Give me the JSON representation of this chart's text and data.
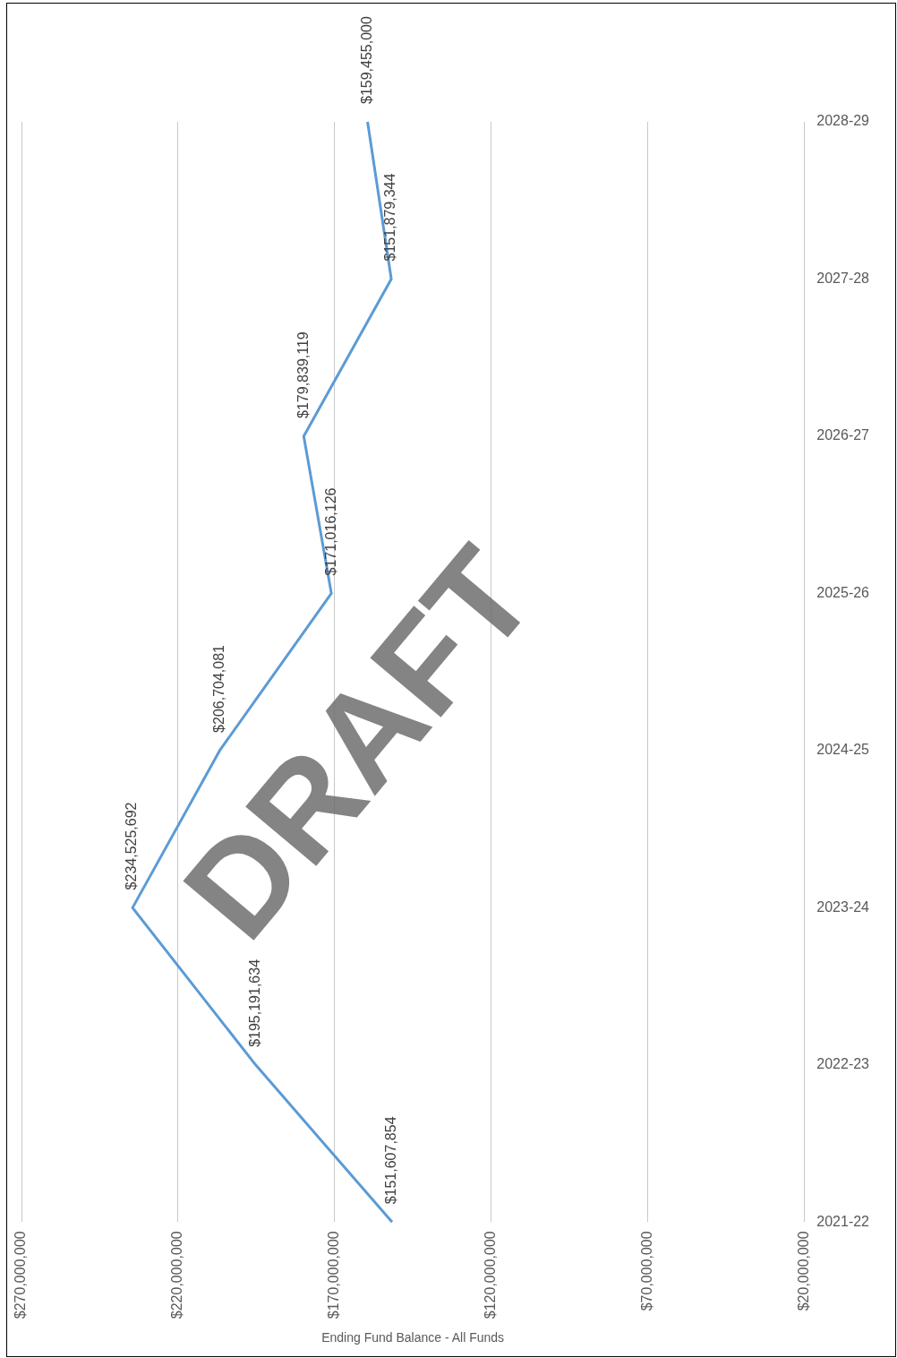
{
  "chart_data": {
    "type": "line",
    "orientation": "horizontal",
    "xlabel": "Ending Fund Balance - All Funds",
    "categories": [
      "2028-29",
      "2027-28",
      "2026-27",
      "2025-26",
      "2024-25",
      "2023-24",
      "2022-23",
      "2021-22"
    ],
    "series": [
      {
        "color": "#5b9bd5",
        "values": [
          159455000,
          151879344,
          179839119,
          171016126,
          206704081,
          234525692,
          195191634,
          151607854
        ],
        "value_labels": [
          "$159,455,000",
          "$151,879,344",
          "$179,839,119",
          "$171,016,126",
          "$206,704,081",
          "$234,525,692",
          "$195,191,634",
          "$151,607,854"
        ]
      }
    ],
    "xlim": [
      270000000,
      20000000
    ],
    "xticks": [
      {
        "value": 270000000,
        "label": "$270,000,000"
      },
      {
        "value": 220000000,
        "label": "$220,000,000"
      },
      {
        "value": 170000000,
        "label": "$170,000,000"
      },
      {
        "value": 120000000,
        "label": "$120,000,000"
      },
      {
        "value": 70000000,
        "label": "$70,000,000"
      },
      {
        "value": 20000000,
        "label": "$20,000,000"
      }
    ],
    "grid": "x",
    "legend": false,
    "marker": "none",
    "annotations": [
      "DRAFT"
    ]
  }
}
